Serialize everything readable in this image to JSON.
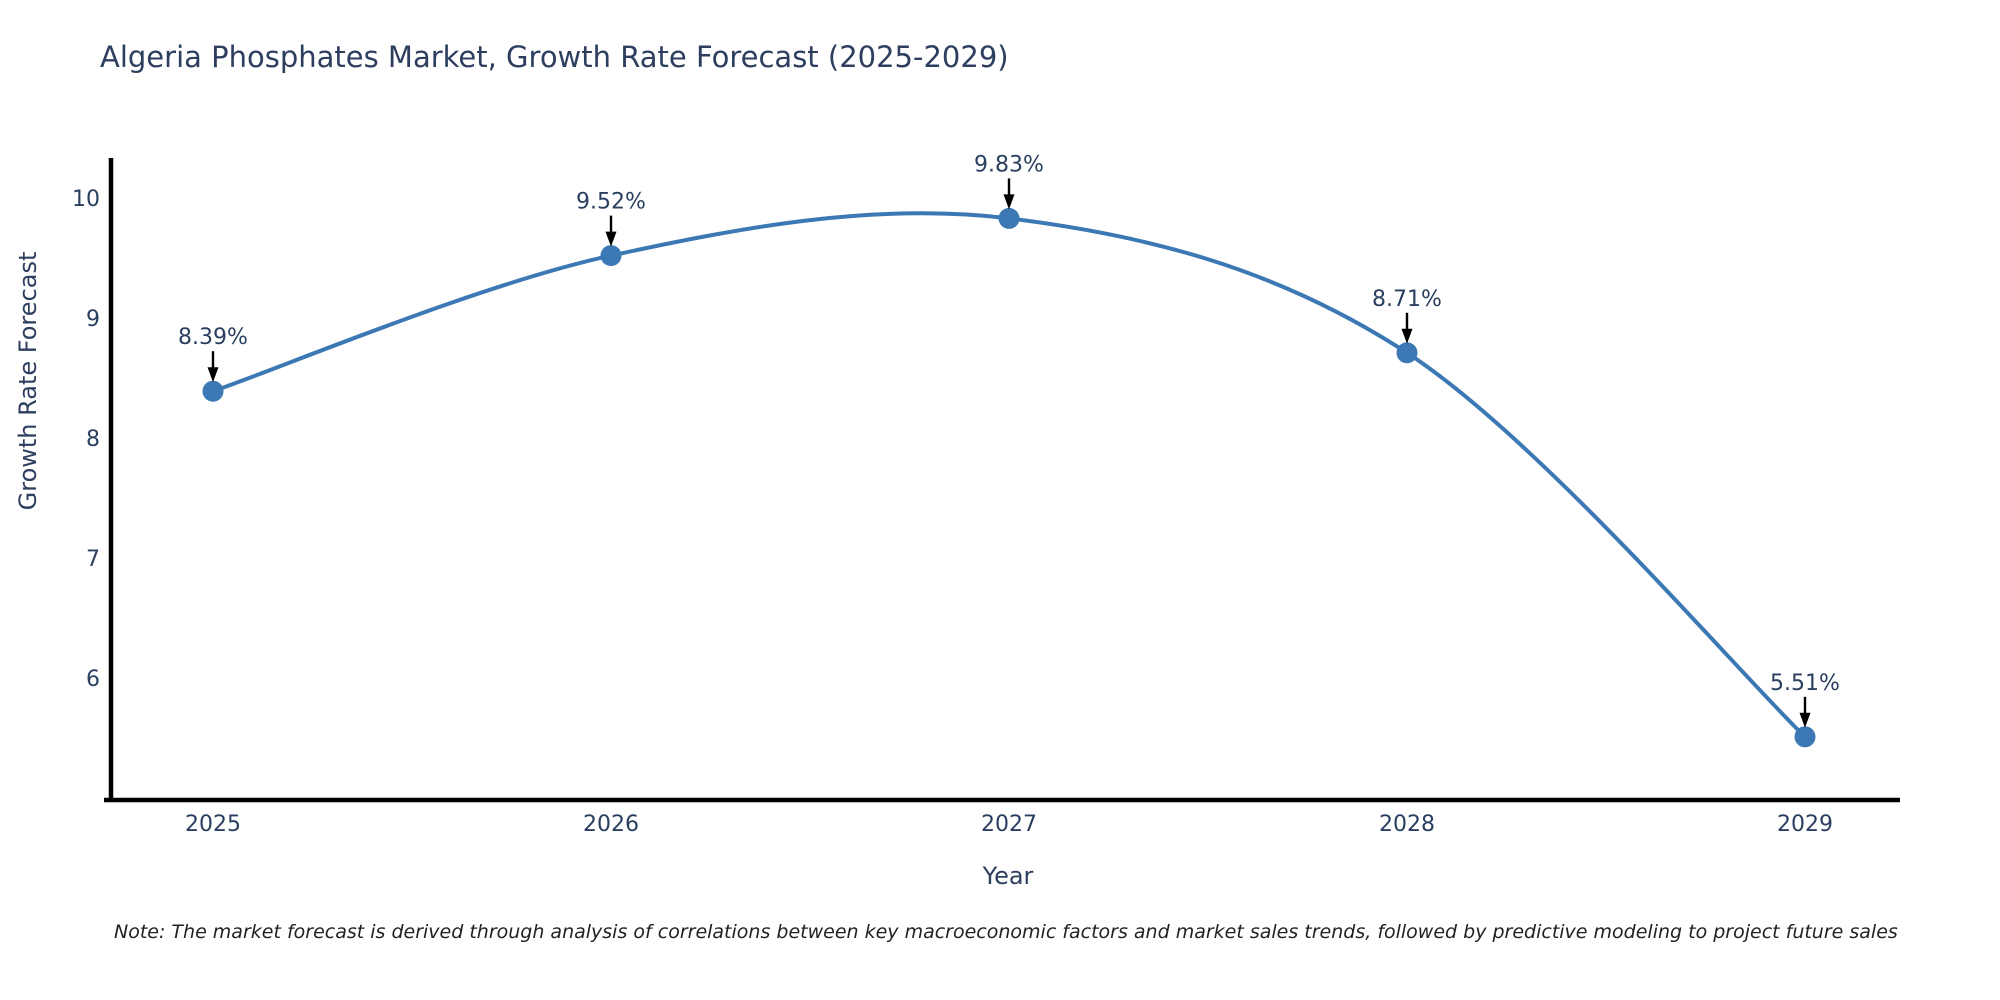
{
  "title": "Algeria Phosphates Market, Growth Rate Forecast (2025-2029)",
  "note": "Note: The market forecast is derived through analysis of correlations between key macroeconomic factors and market sales trends, followed by predictive modeling to project future sales",
  "chart_data": {
    "type": "line",
    "title": "Algeria Phosphates Market, Growth Rate Forecast (2025-2029)",
    "xlabel": "Year",
    "ylabel": "Growth Rate Forecast",
    "categories": [
      "2025",
      "2026",
      "2027",
      "2028",
      "2029"
    ],
    "values": [
      8.39,
      9.52,
      9.83,
      8.71,
      5.51
    ],
    "point_labels": [
      "8.39%",
      "9.52%",
      "9.83%",
      "8.71%",
      "5.51%"
    ],
    "y_ticks": [
      10,
      9,
      8,
      7,
      6
    ],
    "ylim": [
      5.0,
      10.35
    ],
    "grid": false,
    "legend_position": "none",
    "line_shape": "spline",
    "colors": {
      "line": "#3c78b4",
      "marker": "#3c78b4",
      "axis": "#000000",
      "tick_text": "#2a3f5f",
      "annotation_text": "#2a3f5f",
      "arrow": "#000000"
    }
  }
}
